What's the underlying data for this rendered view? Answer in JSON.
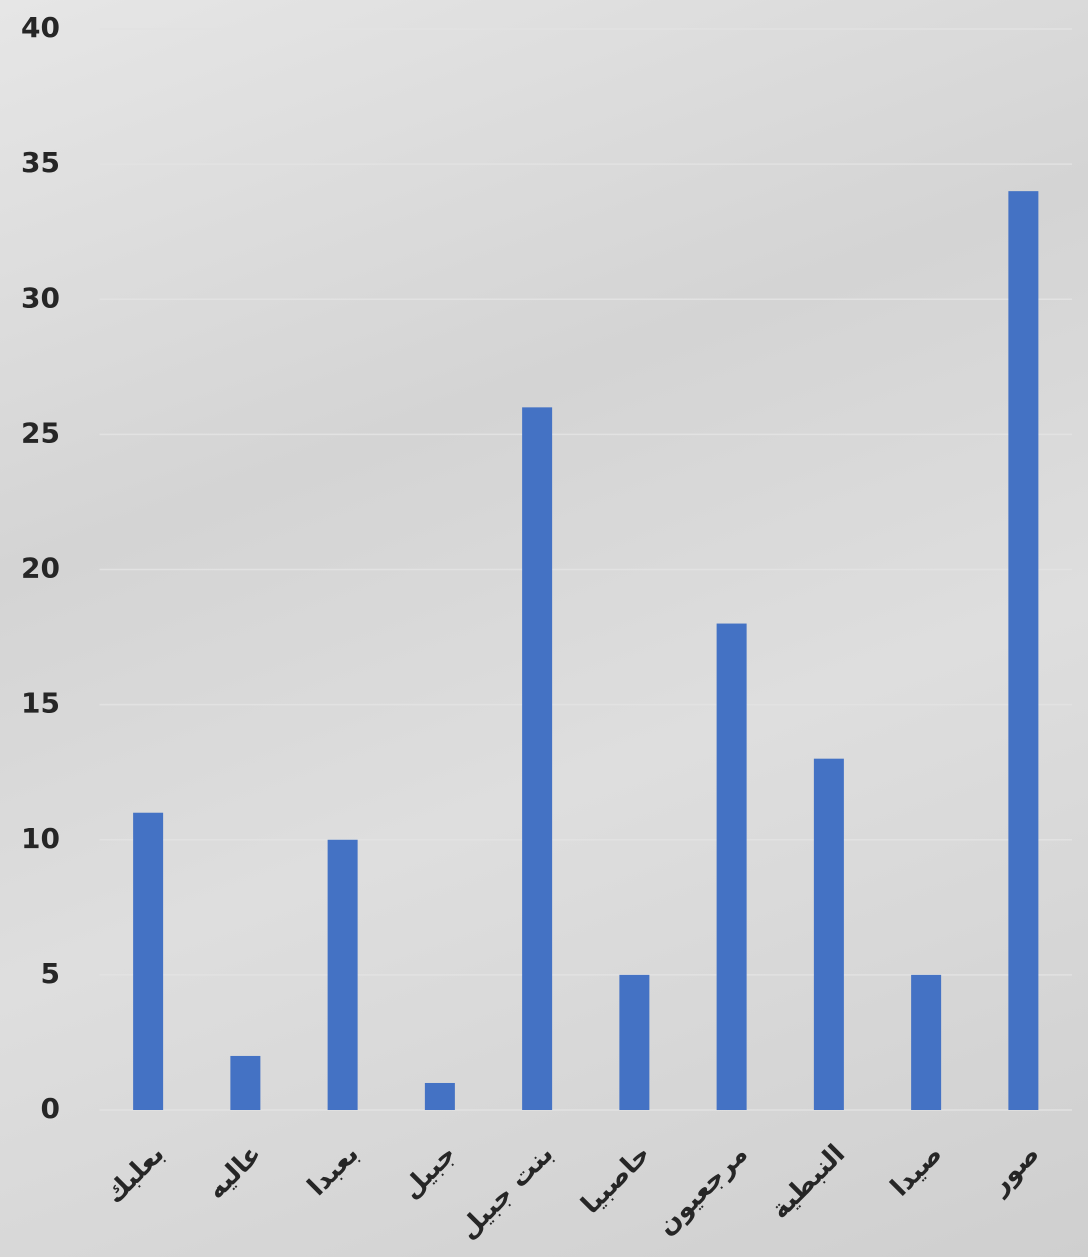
{
  "chart_data": {
    "type": "bar",
    "categories": [
      "بعلبك",
      "عاليه",
      "بعبدا",
      "جبيل",
      "بنت جبيل",
      "حاصبيا",
      "مرجعيون",
      "النبطية",
      "صيدا",
      "صور"
    ],
    "values": [
      11,
      2,
      10,
      1,
      26,
      5,
      18,
      13,
      5,
      34
    ],
    "color": "#4472c4",
    "ylim": [
      0,
      40
    ],
    "yticks": [
      0,
      5,
      10,
      15,
      20,
      25,
      30,
      35,
      40
    ],
    "grid": true
  }
}
